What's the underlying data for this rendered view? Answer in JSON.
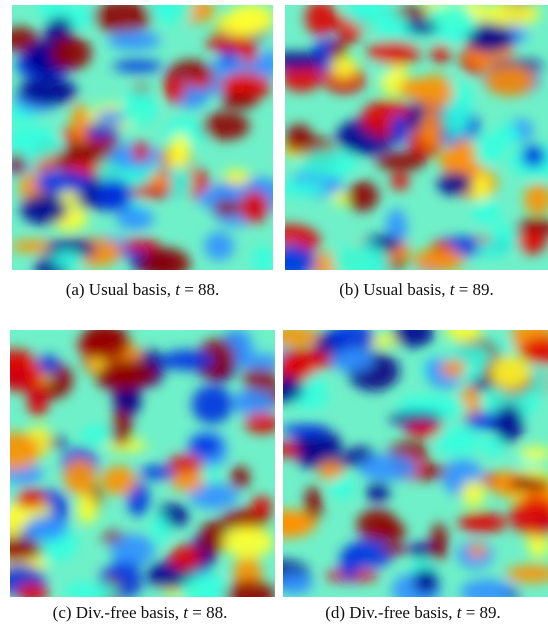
{
  "panels": [
    {
      "prefix": "(a) Usual basis,",
      "variable": "t",
      "rest": "= 88."
    },
    {
      "prefix": "(b) Usual basis,",
      "variable": "t",
      "rest": "= 89."
    },
    {
      "prefix": "(c) Div.-free basis,",
      "variable": "t",
      "rest": "= 88."
    },
    {
      "prefix": "(d) Div.-free basis,",
      "variable": "t",
      "rest": "= 89."
    }
  ]
}
